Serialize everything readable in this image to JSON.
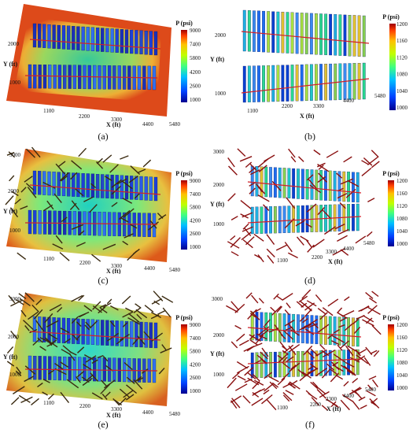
{
  "panels": [
    {
      "caption": "(a)",
      "legend": {
        "title": "P (psi)",
        "ticks": [
          "9000",
          "7400",
          "5800",
          "4200",
          "2600",
          "1000"
        ]
      },
      "axes": {
        "ylabel": "Y (ft)",
        "xlabel": "X (ft)",
        "yticks": [
          "2000",
          "1000"
        ],
        "xticks": [
          "1100",
          "2200",
          "3300",
          "4400",
          "5480"
        ]
      }
    },
    {
      "caption": "(b)",
      "legend": {
        "title": "P (psi)",
        "ticks": [
          "1200",
          "1160",
          "1120",
          "1080",
          "1040",
          "1000"
        ]
      },
      "axes": {
        "ylabel": "Y (ft)",
        "xlabel": "X (ft)",
        "yticks": [
          "2000",
          "1000"
        ],
        "xticks": [
          "1100",
          "2200",
          "3300",
          "4400",
          "5480"
        ]
      }
    },
    {
      "caption": "(c)",
      "legend": {
        "title": "P (psi)",
        "ticks": [
          "9000",
          "7400",
          "5800",
          "4200",
          "2600",
          "1000"
        ]
      },
      "axes": {
        "ylabel": "Y (ft)",
        "xlabel": "X (ft)",
        "yticks": [
          "3000",
          "2000",
          "1000"
        ],
        "xticks": [
          "1100",
          "2200",
          "3300",
          "4400",
          "5480"
        ]
      }
    },
    {
      "caption": "(d)",
      "legend": {
        "title": "P (psi)",
        "ticks": [
          "1200",
          "1160",
          "1120",
          "1080",
          "1040",
          "1000"
        ]
      },
      "axes": {
        "ylabel": "Y (ft)",
        "xlabel": "X (ft)",
        "yticks": [
          "3000",
          "2000",
          "1000"
        ],
        "xticks": [
          "1100",
          "2200",
          "3300",
          "4400",
          "5480"
        ]
      }
    },
    {
      "caption": "(e)",
      "legend": {
        "title": "P (psi)",
        "ticks": [
          "9000",
          "7400",
          "5800",
          "4200",
          "2600",
          "1000"
        ]
      },
      "axes": {
        "ylabel": "Y (ft)",
        "xlabel": "X (ft)",
        "yticks": [
          "3000",
          "2000",
          "1000"
        ],
        "xticks": [
          "1100",
          "2200",
          "3300",
          "4400",
          "5480"
        ]
      }
    },
    {
      "caption": "(f)",
      "legend": {
        "title": "P (psi)",
        "ticks": [
          "1200",
          "1160",
          "1120",
          "1080",
          "1040",
          "1000"
        ]
      },
      "axes": {
        "ylabel": "Y (ft)",
        "xlabel": "X (ft)",
        "yticks": [
          "3000",
          "2000",
          "1000"
        ],
        "xticks": [
          "1100",
          "2200",
          "3300",
          "4400",
          "5480"
        ]
      }
    }
  ],
  "colors": {
    "jet": [
      "#00008f",
      "#0040ff",
      "#00c0ff",
      "#40ff80",
      "#c0ff00",
      "#ffc000",
      "#ff4000",
      "#a00000"
    ],
    "high_pressure": "#dd4a1a",
    "fracture_blue": "#1c3fd8",
    "well_line": "#d0202a",
    "natural_fracture": "#3a2a10",
    "natural_fracture_hot": "#8a1010"
  }
}
